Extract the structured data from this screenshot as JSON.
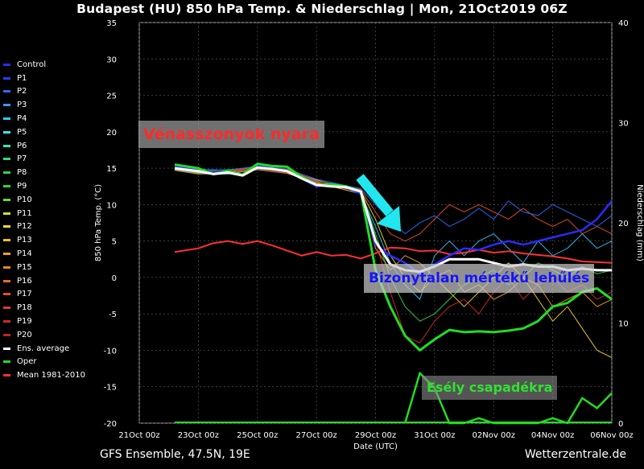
{
  "header": {
    "title": "Budapest  (HU)  850 hPa Temp. & Niederschlag | Mon, 21Oct2019 06Z"
  },
  "footer": {
    "model": "GFS Ensemble, 47.5N, 19E",
    "source": "Wetterzentrale.de"
  },
  "annotations": {
    "warm_spell": "Vénasszonyok nyara",
    "cooling": "Bizonytalan mértékű lehűlés",
    "precip": "Esély csapadékra"
  },
  "legend": [
    {
      "label": "Control",
      "color": "#2b2bff"
    },
    {
      "label": "P1",
      "color": "#2a3cff"
    },
    {
      "label": "P2",
      "color": "#2b6cff"
    },
    {
      "label": "P3",
      "color": "#2f9cff"
    },
    {
      "label": "P4",
      "color": "#34c4ff"
    },
    {
      "label": "P5",
      "color": "#3ee4f0"
    },
    {
      "label": "P6",
      "color": "#36e8b0"
    },
    {
      "label": "P7",
      "color": "#2fdc7c"
    },
    {
      "label": "P8",
      "color": "#2fd84a"
    },
    {
      "label": "P9",
      "color": "#2ed82e"
    },
    {
      "label": "P10",
      "color": "#66dc2a"
    },
    {
      "label": "P11",
      "color": "#c4e42a"
    },
    {
      "label": "P12",
      "color": "#f0d82a"
    },
    {
      "label": "P13",
      "color": "#f0bc2a"
    },
    {
      "label": "P14",
      "color": "#f0a02a"
    },
    {
      "label": "P15",
      "color": "#f0842a"
    },
    {
      "label": "P16",
      "color": "#f0682a"
    },
    {
      "label": "P17",
      "color": "#e8502a"
    },
    {
      "label": "P18",
      "color": "#e03c2a"
    },
    {
      "label": "P19",
      "color": "#d02a2a"
    },
    {
      "label": "P20",
      "color": "#c02424"
    },
    {
      "label": "Ens. average",
      "color": "#ffffff"
    },
    {
      "label": "Oper",
      "color": "#22dd22"
    },
    {
      "label": "Mean 1981-2010",
      "color": "#ff3030"
    }
  ],
  "chart_data": {
    "type": "line",
    "title": "Budapest  (HU)  850 hPa Temp. & Niederschlag | Mon, 21Oct2019 06Z",
    "xlabel": "Date (UTC)",
    "ylabel": "850 hPa Temp. (°C)",
    "y2label": "Niederschlag (mm)",
    "x_ticks": [
      "21Oct 00z",
      "23Oct 00z",
      "25Oct 00z",
      "27Oct 00z",
      "29Oct 00z",
      "31Oct 00z",
      "02Nov 00z",
      "04Nov 00z",
      "06Nov 00z"
    ],
    "xlim_days": [
      0,
      16
    ],
    "ylim": [
      -20,
      35
    ],
    "y_ticks": [
      -20,
      -15,
      -10,
      -5,
      0,
      5,
      10,
      15,
      20,
      25,
      30,
      35
    ],
    "y2lim": [
      0,
      40
    ],
    "y2_ticks": [
      0,
      10,
      20,
      30,
      40
    ],
    "grid": true,
    "legend_position": "left",
    "series": [
      {
        "name": "Mean 1981-2010",
        "color": "#ff3030",
        "x": [
          1.2,
          2.0,
          2.5,
          3.0,
          3.5,
          4.0,
          4.5,
          5.0,
          5.5,
          6.0,
          6.5,
          7.0,
          7.5,
          8.0,
          8.5,
          9.0,
          9.5,
          10.0,
          10.5,
          11.0,
          11.5,
          12.0,
          12.5,
          13.0,
          13.5,
          14.0,
          14.5,
          15.0,
          15.5,
          16.0
        ],
        "y": [
          3.5,
          4.0,
          4.7,
          5.0,
          4.6,
          5.0,
          4.4,
          3.7,
          3.0,
          3.5,
          3.0,
          3.1,
          2.6,
          3.3,
          4.1,
          4.0,
          3.6,
          3.7,
          3.2,
          3.4,
          3.8,
          3.4,
          3.6,
          3.3,
          3.1,
          2.9,
          2.6,
          2.2,
          2.1,
          2.0
        ]
      },
      {
        "name": "Control",
        "color": "#2b2bff",
        "x": [
          1.2,
          2.0,
          2.5,
          3.0,
          3.5,
          4.0,
          4.5,
          5.0,
          5.5,
          6.0,
          6.5,
          7.0,
          7.5,
          8.0,
          8.5,
          9.0,
          9.5,
          10.0,
          10.5,
          11.0,
          11.5,
          12.0,
          12.5,
          13.0,
          13.5,
          14.0,
          14.5,
          15.0,
          15.5,
          16.0
        ],
        "y": [
          15.2,
          14.8,
          14.4,
          14.6,
          14.1,
          15.3,
          15.0,
          14.6,
          13.6,
          12.5,
          12.9,
          12.4,
          11.5,
          4.5,
          3.0,
          2.0,
          0.5,
          1.8,
          3.0,
          4.0,
          3.8,
          4.5,
          5.0,
          4.5,
          5.0,
          5.5,
          6.0,
          6.5,
          8.0,
          10.5
        ]
      },
      {
        "name": "Ens. average",
        "color": "#ffffff",
        "x": [
          1.2,
          2.0,
          2.5,
          3.0,
          3.5,
          4.0,
          4.5,
          5.0,
          5.5,
          6.0,
          6.5,
          7.0,
          7.5,
          8.0,
          8.5,
          9.0,
          9.5,
          10.0,
          10.5,
          11.0,
          11.5,
          12.0,
          12.5,
          13.0,
          13.5,
          14.0,
          14.5,
          15.0,
          15.5,
          16.0
        ],
        "y": [
          15.0,
          14.6,
          14.2,
          14.4,
          14.0,
          15.1,
          14.9,
          14.6,
          13.6,
          12.7,
          12.5,
          12.4,
          11.8,
          5.0,
          1.8,
          1.0,
          0.8,
          1.5,
          2.5,
          2.5,
          2.5,
          2.0,
          1.5,
          1.8,
          1.5,
          1.5,
          1.0,
          1.2,
          1.0,
          1.0
        ]
      },
      {
        "name": "Oper",
        "color": "#22dd22",
        "x": [
          1.2,
          2.0,
          2.5,
          3.0,
          3.5,
          4.0,
          4.5,
          5.0,
          5.5,
          6.0,
          6.5,
          7.0,
          7.5,
          8.0,
          8.5,
          9.0,
          9.5,
          10.0,
          10.5,
          11.0,
          11.5,
          12.0,
          12.5,
          13.0,
          13.5,
          14.0,
          14.5,
          15.0,
          15.5,
          16.0
        ],
        "y": [
          15.5,
          15.0,
          14.2,
          14.6,
          14.1,
          15.6,
          15.3,
          15.2,
          13.8,
          12.7,
          12.8,
          12.5,
          11.8,
          1.0,
          -4.0,
          -8.0,
          -10.0,
          -8.5,
          -7.2,
          -7.5,
          -7.4,
          -7.5,
          -7.3,
          -7.0,
          -6.0,
          -4.0,
          -3.5,
          -2.0,
          -1.5,
          -3.0
        ]
      },
      {
        "name": "P4",
        "color": "#34c4ff",
        "x": [
          1.2,
          2.0,
          3.0,
          4.0,
          5.0,
          6.0,
          7.0,
          7.5,
          8.0,
          8.5,
          9.0,
          9.5,
          10.0,
          10.5,
          11.0,
          11.5,
          12.0,
          12.5,
          13.0,
          13.5,
          14.0,
          14.5,
          15.0,
          15.5,
          16.0
        ],
        "y": [
          14.8,
          14.3,
          14.2,
          14.9,
          14.5,
          13.2,
          12.0,
          11.5,
          7.0,
          2.0,
          -1.0,
          -3.0,
          3.0,
          5.0,
          3.0,
          5.0,
          6.0,
          4.0,
          2.0,
          5.0,
          3.0,
          4.0,
          6.0,
          4.0,
          5.0
        ]
      },
      {
        "name": "P8",
        "color": "#2fd84a",
        "x": [
          1.2,
          2.0,
          3.0,
          4.0,
          5.0,
          6.0,
          7.0,
          7.5,
          8.0,
          8.5,
          9.0,
          9.5,
          10.0,
          10.5,
          11.0,
          11.5,
          12.0,
          12.5,
          13.0,
          13.5,
          14.0,
          14.5,
          15.0,
          15.5,
          16.0
        ],
        "y": [
          15.2,
          14.6,
          14.8,
          15.1,
          14.8,
          13.0,
          12.4,
          12.0,
          6.0,
          0.0,
          -4.0,
          -6.0,
          -5.0,
          -3.0,
          -1.0,
          0.0,
          1.0,
          -1.0,
          0.0,
          2.0,
          1.0,
          0.0,
          1.5,
          0.5,
          1.0
        ]
      },
      {
        "name": "P12",
        "color": "#f0d82a",
        "x": [
          1.2,
          2.0,
          3.0,
          4.0,
          5.0,
          6.0,
          7.0,
          7.5,
          8.0,
          8.5,
          9.0,
          9.5,
          10.0,
          10.5,
          11.0,
          11.5,
          12.0,
          12.5,
          13.0,
          13.5,
          14.0,
          14.5,
          15.0,
          15.5,
          16.0
        ],
        "y": [
          14.9,
          14.4,
          14.5,
          15.0,
          14.6,
          13.4,
          12.2,
          11.9,
          8.0,
          3.0,
          0.0,
          -2.0,
          0.0,
          -2.0,
          -4.0,
          -2.0,
          0.0,
          2.0,
          0.0,
          -3.0,
          -6.0,
          -4.0,
          -7.0,
          -10.0,
          -11.0
        ]
      },
      {
        "name": "P17",
        "color": "#e8502a",
        "x": [
          1.2,
          2.0,
          3.0,
          4.0,
          5.0,
          6.0,
          7.0,
          7.5,
          8.0,
          8.5,
          9.0,
          9.5,
          10.0,
          10.5,
          11.0,
          11.5,
          12.0,
          12.5,
          13.0,
          13.5,
          14.0,
          14.5,
          15.0,
          15.5,
          16.0
        ],
        "y": [
          15.0,
          14.5,
          14.6,
          15.2,
          14.8,
          13.3,
          12.5,
          12.1,
          9.0,
          6.0,
          5.0,
          6.0,
          8.0,
          10.0,
          9.0,
          10.0,
          9.0,
          8.0,
          9.5,
          8.0,
          7.0,
          8.0,
          6.0,
          7.0,
          6.0
        ]
      },
      {
        "name": "P19",
        "color": "#d02a2a",
        "x": [
          1.2,
          2.0,
          3.0,
          4.0,
          5.0,
          6.0,
          7.0,
          7.5,
          8.0,
          8.5,
          9.0,
          9.5,
          10.0,
          10.5,
          11.0,
          11.5,
          12.0,
          12.5,
          13.0,
          13.5,
          14.0,
          14.5,
          15.0,
          15.5,
          16.0
        ],
        "y": [
          15.1,
          14.7,
          14.4,
          15.0,
          14.4,
          13.1,
          12.3,
          11.7,
          5.0,
          -2.0,
          -8.0,
          -9.0,
          -6.0,
          -4.0,
          -3.0,
          -5.0,
          -2.0,
          0.0,
          -3.0,
          -1.0,
          0.0,
          -2.0,
          -1.0,
          -3.0,
          -2.0
        ]
      },
      {
        "name": "P2",
        "color": "#2b6cff",
        "x": [
          1.2,
          2.0,
          3.0,
          4.0,
          5.0,
          6.0,
          7.0,
          7.5,
          8.0,
          8.5,
          9.0,
          9.5,
          10.0,
          10.5,
          11.0,
          11.5,
          12.0,
          12.5,
          13.0,
          13.5,
          14.0,
          14.5,
          15.0,
          15.5,
          16.0
        ],
        "y": [
          15.3,
          14.9,
          14.7,
          15.3,
          14.9,
          13.5,
          12.6,
          12.2,
          10.0,
          8.0,
          6.0,
          7.5,
          8.5,
          7.0,
          8.0,
          9.5,
          8.0,
          10.5,
          9.0,
          8.5,
          10.0,
          9.0,
          8.0,
          7.0,
          8.5
        ]
      },
      {
        "name": "P14",
        "color": "#f0a02a",
        "x": [
          1.2,
          2.0,
          3.0,
          4.0,
          5.0,
          6.0,
          7.0,
          7.5,
          8.0,
          8.5,
          9.0,
          9.5,
          10.0,
          10.5,
          11.0,
          11.5,
          12.0,
          12.5,
          13.0,
          13.5,
          14.0,
          14.5,
          15.0,
          15.5,
          16.0
        ],
        "y": [
          14.7,
          14.2,
          14.3,
          14.8,
          14.3,
          13.0,
          12.0,
          11.6,
          4.0,
          1.0,
          3.0,
          2.0,
          0.0,
          1.0,
          -2.0,
          -1.0,
          -3.0,
          -2.0,
          0.0,
          -1.0,
          -4.0,
          -3.0,
          -2.0,
          -4.0,
          -3.0
        ]
      }
    ],
    "precip_series": {
      "name": "Oper precipitation (mm)",
      "color": "#22dd22",
      "x": [
        9.0,
        9.5,
        10.0,
        10.5,
        11.0,
        11.5,
        12.0,
        12.5,
        13.0,
        13.5,
        14.0,
        14.5,
        15.0,
        15.5,
        16.0
      ],
      "y": [
        0.0,
        5.0,
        3.5,
        0.0,
        0.0,
        0.5,
        0.0,
        0.0,
        0.0,
        0.0,
        0.5,
        0.0,
        2.5,
        1.5,
        3.0
      ]
    }
  }
}
